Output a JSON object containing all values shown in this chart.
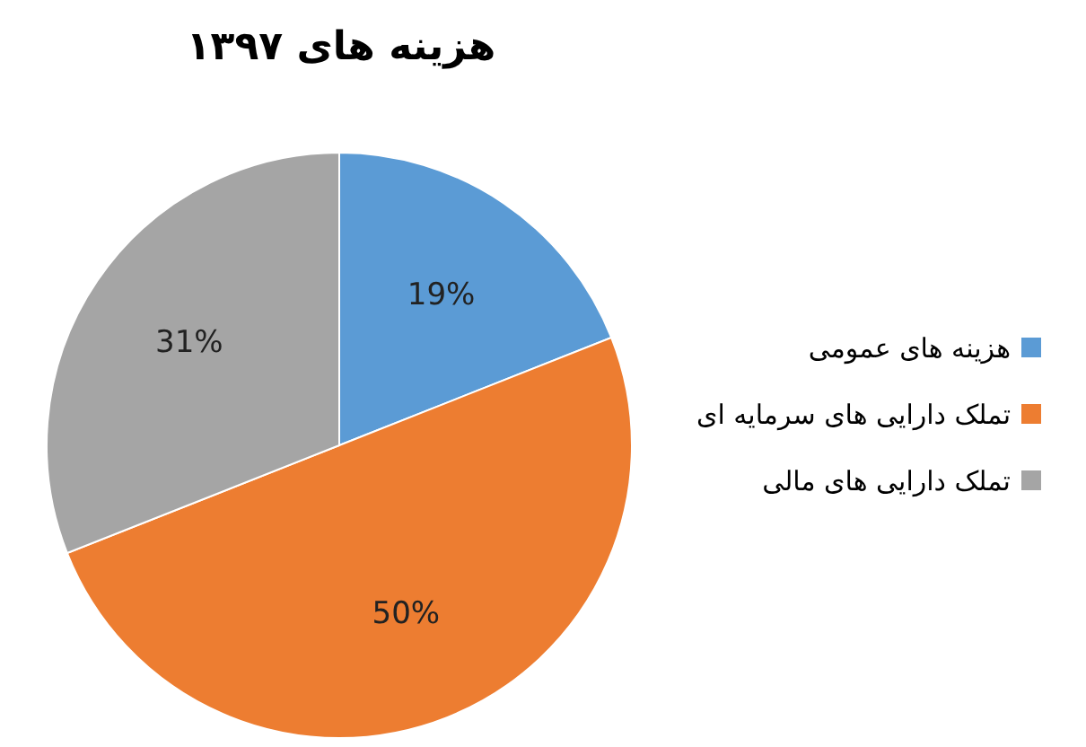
{
  "chart_data": {
    "type": "pie",
    "title": "هزینه های ۱۳۹۷",
    "categories": [
      "هزینه های عمومی",
      "تملک دارایی های سرمایه ای",
      "تملک دارایی های مالی"
    ],
    "values": [
      19,
      50,
      31
    ],
    "colors": [
      "#5b9bd5",
      "#ed7d31",
      "#a5a5a5"
    ],
    "value_labels": [
      "19%",
      "50%",
      "31%"
    ],
    "legend": "right"
  }
}
